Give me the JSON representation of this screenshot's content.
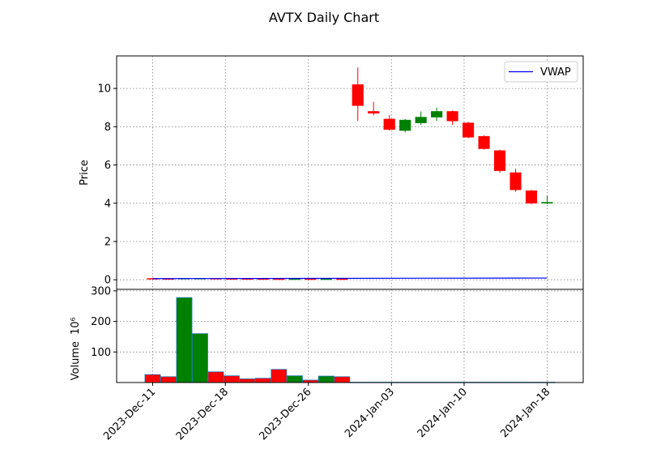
{
  "chart_data": {
    "type": "candlestick",
    "title": "AVTX Daily Chart",
    "price_panel": {
      "ylabel": "Price",
      "ylim": [
        -0.5,
        11.7
      ],
      "yticks": [
        0,
        2,
        4,
        6,
        8,
        10
      ],
      "grid": true,
      "legend": {
        "entries": [
          "VWAP"
        ],
        "placement": "top-right"
      }
    },
    "volume_panel": {
      "ylabel": "Volume",
      "ylabel_exponent": "10⁶",
      "ylim": [
        0,
        305
      ],
      "yticks": [
        100,
        200,
        300
      ],
      "grid": true
    },
    "x_ticks": [
      {
        "label": "2023-Dec-11",
        "date": "2023-12-11"
      },
      {
        "label": "2023-Dec-18",
        "date": "2023-12-18"
      },
      {
        "label": "2023-Dec-26",
        "date": "2023-12-26"
      },
      {
        "label": "2024-Jan-03",
        "date": "2024-01-03"
      },
      {
        "label": "2024-Jan-10",
        "date": "2024-01-10"
      },
      {
        "label": "2024-Jan-18",
        "date": "2024-01-18"
      }
    ],
    "candles": [
      {
        "date": "2023-12-11",
        "open": 0.07,
        "high": 0.08,
        "low": 0.05,
        "close": 0.06,
        "volume": 26
      },
      {
        "date": "2023-12-12",
        "open": 0.06,
        "high": 0.07,
        "low": 0.05,
        "close": 0.055,
        "volume": 19
      },
      {
        "date": "2023-12-13",
        "open": 0.055,
        "high": 0.09,
        "low": 0.05,
        "close": 0.08,
        "volume": 278
      },
      {
        "date": "2023-12-14",
        "open": 0.07,
        "high": 0.09,
        "low": 0.06,
        "close": 0.08,
        "volume": 160
      },
      {
        "date": "2023-12-15",
        "open": 0.075,
        "high": 0.08,
        "low": 0.06,
        "close": 0.065,
        "volume": 35
      },
      {
        "date": "2023-12-18",
        "open": 0.065,
        "high": 0.07,
        "low": 0.05,
        "close": 0.06,
        "volume": 22
      },
      {
        "date": "2023-12-19",
        "open": 0.06,
        "high": 0.065,
        "low": 0.05,
        "close": 0.055,
        "volume": 12
      },
      {
        "date": "2023-12-20",
        "open": 0.055,
        "high": 0.06,
        "low": 0.045,
        "close": 0.05,
        "volume": 14
      },
      {
        "date": "2023-12-21",
        "open": 0.05,
        "high": 0.06,
        "low": 0.04,
        "close": 0.045,
        "volume": 43
      },
      {
        "date": "2023-12-22",
        "open": 0.045,
        "high": 0.06,
        "low": 0.04,
        "close": 0.05,
        "volume": 22
      },
      {
        "date": "2023-12-26",
        "open": 0.05,
        "high": 0.055,
        "low": 0.04,
        "close": 0.045,
        "volume": 8
      },
      {
        "date": "2023-12-27",
        "open": 0.045,
        "high": 0.06,
        "low": 0.04,
        "close": 0.05,
        "volume": 21
      },
      {
        "date": "2023-12-28",
        "open": 0.05,
        "high": 0.055,
        "low": 0.04,
        "close": 0.045,
        "volume": 19
      },
      {
        "date": "2023-12-29",
        "open": 10.2,
        "high": 11.1,
        "low": 8.3,
        "close": 9.1,
        "volume": 1
      },
      {
        "date": "2024-01-02",
        "open": 8.8,
        "high": 9.3,
        "low": 8.6,
        "close": 8.7,
        "volume": 1
      },
      {
        "date": "2024-01-03",
        "open": 8.4,
        "high": 8.6,
        "low": 7.8,
        "close": 7.85,
        "volume": 1
      },
      {
        "date": "2024-01-04",
        "open": 7.8,
        "high": 8.4,
        "low": 7.7,
        "close": 8.35,
        "volume": 1
      },
      {
        "date": "2024-01-05",
        "open": 8.2,
        "high": 8.8,
        "low": 8.1,
        "close": 8.5,
        "volume": 1
      },
      {
        "date": "2024-01-08",
        "open": 8.5,
        "high": 9.0,
        "low": 8.3,
        "close": 8.8,
        "volume": 1
      },
      {
        "date": "2024-01-09",
        "open": 8.8,
        "high": 8.85,
        "low": 8.1,
        "close": 8.3,
        "volume": 1
      },
      {
        "date": "2024-01-10",
        "open": 8.2,
        "high": 8.25,
        "low": 7.4,
        "close": 7.45,
        "volume": 1
      },
      {
        "date": "2024-01-11",
        "open": 7.5,
        "high": 7.55,
        "low": 6.8,
        "close": 6.85,
        "volume": 1
      },
      {
        "date": "2024-01-12",
        "open": 6.75,
        "high": 6.8,
        "low": 5.6,
        "close": 5.7,
        "volume": 1
      },
      {
        "date": "2024-01-16",
        "open": 5.6,
        "high": 5.8,
        "low": 4.6,
        "close": 4.7,
        "volume": 1
      },
      {
        "date": "2024-01-17",
        "open": 4.65,
        "high": 4.7,
        "low": 3.95,
        "close": 4.0,
        "volume": 1
      },
      {
        "date": "2024-01-18",
        "open": 4.0,
        "high": 4.4,
        "low": 3.95,
        "close": 4.05,
        "volume": 1
      }
    ],
    "vwap": [
      {
        "date": "2023-12-11",
        "value": 0.06
      },
      {
        "date": "2024-01-18",
        "value": 0.09
      }
    ],
    "colors": {
      "up": "#008000",
      "down": "#ff0000",
      "vwap": "#0000ff",
      "volume_edge": "#1f77b4"
    }
  }
}
